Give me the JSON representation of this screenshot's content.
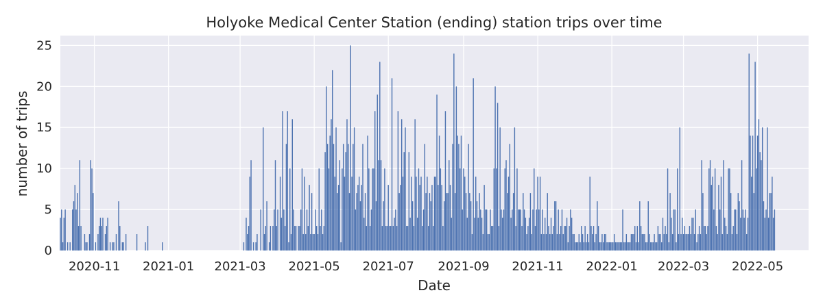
{
  "chart_data": {
    "type": "bar",
    "title": "Holyoke Medical Center Station (ending) station trips over time",
    "xlabel": "Date",
    "ylabel": "number of trips",
    "ylim": [
      0,
      26.2
    ],
    "xlim": [
      "2020-10-04",
      "2022-06-12"
    ],
    "yticks": [
      0,
      5,
      10,
      15,
      20,
      25
    ],
    "xticks": [
      "2020-11",
      "2021-01",
      "2021-03",
      "2021-05",
      "2021-07",
      "2021-09",
      "2021-11",
      "2022-01",
      "2022-03",
      "2022-05"
    ],
    "xtick_dates": [
      "2020-11-01",
      "2021-01-01",
      "2021-03-01",
      "2021-05-01",
      "2021-07-01",
      "2021-09-01",
      "2021-11-01",
      "2022-01-01",
      "2022-03-01",
      "2022-05-01"
    ],
    "grid": true,
    "colors": {
      "bar": "#4c72b0",
      "background": "#eaeaf2",
      "grid": "#ffffff"
    },
    "start_date": "2020-10-04",
    "values": [
      4,
      5,
      1,
      4,
      5,
      0,
      1,
      0,
      1,
      0,
      5,
      6,
      8,
      5,
      7,
      3,
      11,
      3,
      0,
      0,
      2,
      1,
      1,
      0,
      2,
      11,
      10,
      7,
      0,
      1,
      0,
      2,
      3,
      4,
      3,
      4,
      0,
      2,
      3,
      4,
      0,
      1,
      0,
      1,
      1,
      0,
      2,
      0,
      6,
      3,
      0,
      1,
      1,
      0,
      2,
      0,
      0,
      0,
      0,
      0,
      0,
      0,
      0,
      2,
      0,
      0,
      0,
      0,
      0,
      0,
      1,
      0,
      3,
      0,
      0,
      0,
      0,
      0,
      0,
      0,
      0,
      0,
      0,
      0,
      1,
      0,
      0,
      0,
      0,
      0,
      0,
      0,
      0,
      0,
      0,
      0,
      0,
      0,
      0,
      0,
      0,
      0,
      0,
      0,
      0,
      0,
      0,
      0,
      0,
      0,
      0,
      0,
      0,
      0,
      0,
      0,
      0,
      0,
      0,
      0,
      0,
      0,
      0,
      0,
      0,
      0,
      0,
      0,
      0,
      0,
      0,
      0,
      0,
      0,
      0,
      0,
      0,
      0,
      0,
      0,
      0,
      0,
      0,
      0,
      0,
      0,
      0,
      0,
      0,
      0,
      0,
      1,
      0,
      4,
      2,
      3,
      9,
      11,
      0,
      1,
      0,
      1,
      2,
      0,
      0,
      5,
      0,
      15,
      2,
      3,
      6,
      0,
      1,
      3,
      0,
      3,
      5,
      11,
      3,
      5,
      0,
      9,
      4,
      17,
      5,
      3,
      13,
      17,
      1,
      10,
      2,
      16,
      5,
      3,
      3,
      0,
      3,
      3,
      5,
      10,
      2,
      9,
      2,
      5,
      3,
      8,
      2,
      7,
      2,
      2,
      5,
      3,
      2,
      10,
      3,
      5,
      2,
      3,
      12,
      20,
      13,
      10,
      14,
      16,
      22,
      13,
      9,
      15,
      7,
      8,
      11,
      1,
      10,
      13,
      9,
      12,
      16,
      13,
      7,
      25,
      9,
      13,
      15,
      5,
      7,
      8,
      9,
      6,
      8,
      13,
      4,
      7,
      3,
      14,
      10,
      3,
      5,
      10,
      10,
      17,
      6,
      19,
      11,
      23,
      11,
      3,
      6,
      10,
      3,
      3,
      8,
      3,
      3,
      21,
      3,
      4,
      5,
      3,
      17,
      7,
      8,
      16,
      9,
      12,
      15,
      3,
      3,
      12,
      4,
      9,
      6,
      3,
      16,
      9,
      4,
      10,
      8,
      9,
      3,
      5,
      13,
      7,
      9,
      3,
      7,
      6,
      8,
      3,
      9,
      9,
      19,
      8,
      14,
      10,
      8,
      3,
      6,
      17,
      7,
      7,
      11,
      8,
      4,
      13,
      24,
      7,
      20,
      14,
      13,
      10,
      14,
      5,
      10,
      9,
      7,
      4,
      13,
      7,
      6,
      2,
      21,
      4,
      9,
      6,
      4,
      7,
      5,
      4,
      2,
      8,
      5,
      5,
      2,
      2,
      5,
      3,
      3,
      10,
      20,
      10,
      18,
      3,
      15,
      5,
      4,
      5,
      10,
      11,
      7,
      9,
      13,
      4,
      5,
      7,
      15,
      3,
      10,
      5,
      5,
      5,
      3,
      7,
      5,
      4,
      2,
      3,
      4,
      7,
      2,
      5,
      10,
      3,
      5,
      9,
      5,
      9,
      2,
      5,
      2,
      4,
      2,
      7,
      3,
      2,
      4,
      2,
      3,
      6,
      6,
      2,
      5,
      2,
      3,
      5,
      2,
      3,
      3,
      4,
      1,
      3,
      5,
      4,
      2,
      2,
      1,
      1,
      1,
      2,
      1,
      3,
      2,
      1,
      3,
      1,
      2,
      1,
      9,
      3,
      2,
      3,
      1,
      2,
      6,
      3,
      1,
      1,
      2,
      1,
      2,
      2,
      1,
      1,
      1,
      1,
      1,
      1,
      2,
      1,
      1,
      1,
      1,
      1,
      1,
      5,
      1,
      1,
      2,
      1,
      1,
      1,
      2,
      2,
      2,
      3,
      1,
      3,
      1,
      6,
      3,
      2,
      2,
      2,
      1,
      1,
      6,
      2,
      1,
      1,
      1,
      2,
      1,
      1,
      3,
      2,
      2,
      1,
      4,
      2,
      3,
      2,
      10,
      1,
      7,
      4,
      2,
      5,
      5,
      1,
      10,
      2,
      15,
      2,
      4,
      2,
      3,
      2,
      2,
      2,
      3,
      2,
      4,
      4,
      2,
      5,
      1,
      2,
      3,
      2,
      11,
      7,
      3,
      3,
      2,
      3,
      10,
      11,
      8,
      9,
      5,
      10,
      3,
      2,
      8,
      5,
      9,
      2,
      11,
      4,
      3,
      2,
      10,
      10,
      7,
      2,
      3,
      5,
      5,
      2,
      7,
      6,
      4,
      11,
      5,
      4,
      5,
      2,
      4,
      24,
      14,
      9,
      14,
      7,
      23,
      10,
      14,
      16,
      12,
      11,
      15,
      6,
      4,
      5,
      15,
      4,
      7,
      7,
      9,
      4,
      5
    ]
  }
}
